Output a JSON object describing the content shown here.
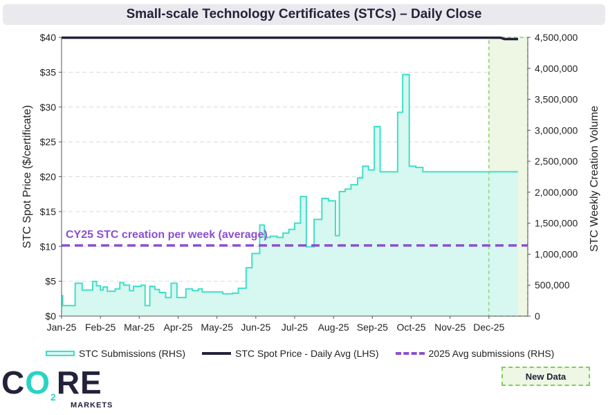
{
  "chart_data": {
    "type": "area",
    "title": "Small-scale Technology Certificates (STCs) – Daily Close",
    "ylabel_left": "STC Spot Price ($/certificate)",
    "ylabel_right": "STC Weekly Creation Volume",
    "ylim_left": [
      0,
      40
    ],
    "ylim_right": [
      0,
      4500000
    ],
    "yticks_left": [
      "$0",
      "$5",
      "$10",
      "$15",
      "$20",
      "$25",
      "$30",
      "$35",
      "$40"
    ],
    "yticks_right": [
      "0",
      "500,000",
      "1,000,000",
      "1,500,000",
      "2,000,000",
      "2,500,000",
      "3,000,000",
      "3,500,000",
      "4,000,000",
      "4,500,000"
    ],
    "x_months": [
      "Jan-25",
      "Feb-25",
      "Mar-25",
      "Apr-25",
      "May-25",
      "Jun-25",
      "Jul-25",
      "Aug-25",
      "Sep-25",
      "Oct-25",
      "Nov-25",
      "Dec-25"
    ],
    "series": [
      {
        "name": "STC Submissions (RHS)",
        "axis": "right",
        "color": "#3ee0c6",
        "fill": "#d7f7f1",
        "x": [
          0.0,
          0.03,
          0.13,
          0.35,
          0.53,
          0.68,
          0.8,
          0.9,
          1.0,
          1.07,
          1.18,
          1.38,
          1.5,
          1.6,
          1.75,
          1.85,
          2.05,
          2.15,
          2.27,
          2.4,
          2.52,
          2.68,
          2.82,
          2.97,
          3.08,
          3.2,
          3.37,
          3.52,
          3.62,
          3.75,
          3.87,
          4.05,
          4.15,
          4.4,
          4.55,
          4.75,
          4.9,
          5.1,
          5.22,
          5.37,
          5.55,
          5.7,
          5.85,
          6.0,
          6.15,
          6.3,
          6.5,
          6.7,
          6.87,
          7.05,
          7.15,
          7.3,
          7.45,
          7.62,
          7.75,
          7.9,
          8.05,
          8.2,
          8.37,
          8.5,
          8.65,
          8.78,
          8.95,
          9.12,
          9.3,
          9.45,
          9.62,
          9.82,
          9.97,
          10.12,
          10.28,
          10.45,
          10.6,
          10.78,
          10.97,
          11.12,
          11.28,
          11.45,
          11.6,
          11.75
        ],
        "values": [
          330000,
          170000,
          170000,
          530000,
          420000,
          420000,
          560000,
          490000,
          420000,
          470000,
          400000,
          440000,
          540000,
          500000,
          410000,
          480000,
          500000,
          170000,
          480000,
          430000,
          380000,
          300000,
          530000,
          300000,
          300000,
          440000,
          410000,
          440000,
          390000,
          390000,
          390000,
          390000,
          360000,
          370000,
          450000,
          780000,
          1010000,
          1470000,
          1270000,
          1290000,
          1270000,
          1340000,
          1400000,
          1500000,
          1930000,
          1120000,
          1560000,
          1900000,
          1860000,
          1300000,
          2010000,
          2050000,
          2120000,
          2230000,
          2420000,
          2360000,
          3060000,
          2330000,
          2330000,
          2330000,
          3290000,
          3900000,
          2420000,
          2400000,
          2330000,
          2330000,
          2330000,
          2330000,
          2330000,
          2330000,
          2330000,
          2330000,
          2330000,
          2330000,
          2330000,
          2330000,
          2330000,
          2330000,
          2330000,
          2330000
        ]
      },
      {
        "name": "STC Spot Price - Daily Avg (LHS)",
        "axis": "left",
        "color": "#23223a",
        "x": [
          0.0,
          1.0,
          2.0,
          3.0,
          4.0,
          5.0,
          6.0,
          7.0,
          8.0,
          9.0,
          10.0,
          11.0,
          11.3,
          11.4,
          11.75
        ],
        "values": [
          39.95,
          39.95,
          39.95,
          39.95,
          39.95,
          39.95,
          39.95,
          39.95,
          39.95,
          39.95,
          39.95,
          39.95,
          39.95,
          39.75,
          39.75
        ]
      },
      {
        "name": "2025 Avg submissions (RHS)",
        "axis": "right",
        "color": "#8b4fd0",
        "style": "dashed",
        "value": 1140000
      }
    ],
    "annotation": "CY25 STC creation per week (average)",
    "new_data_start_month_index": 11.0,
    "legend": [
      "STC Submissions (RHS)",
      "STC Spot Price - Daily Avg (LHS)",
      "2025 Avg submissions (RHS)"
    ]
  },
  "new_data_label": "New Data",
  "logo": {
    "main_a": "C",
    "main_o2": "O",
    "main_b": "RE",
    "sub": "MARKETS",
    "subscript": "2"
  }
}
